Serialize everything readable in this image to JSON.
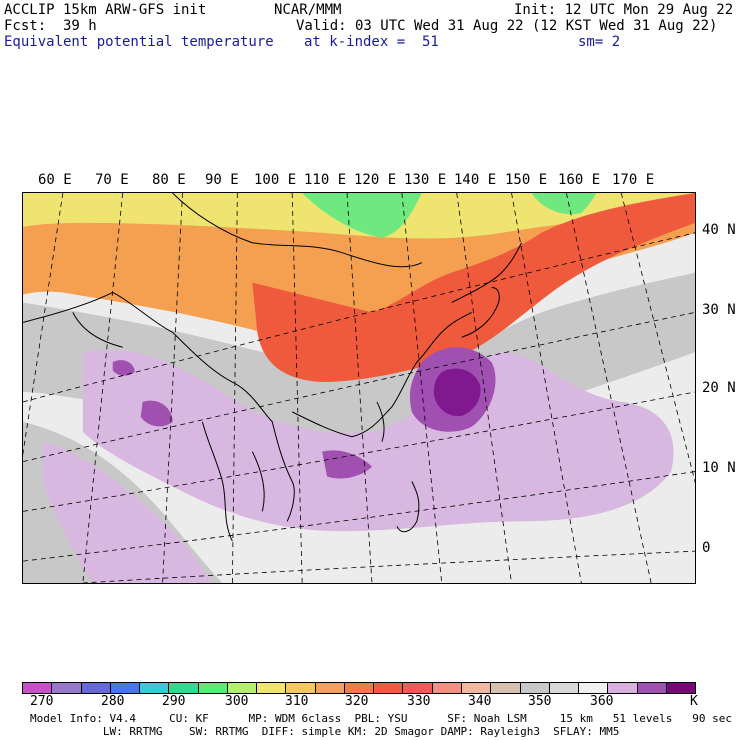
{
  "header": {
    "model": "ACCLIP 15km ARW-GFS init",
    "org": "NCAR/MMM",
    "init": "Init: 12 UTC Mon 29 Aug 22",
    "fcst": "Fcst:  39 h",
    "valid": "Valid: 03 UTC Wed 31 Aug 22 (12 KST Wed 31 Aug 22)",
    "variable": "Equivalent potential temperature",
    "level": "at k-index =  51",
    "smoothing": "sm= 2"
  },
  "map": {
    "lon_labels": [
      "60 E",
      "70 E",
      "80 E",
      "90 E",
      "100 E",
      "110 E",
      "120 E",
      "130 E",
      "140 E",
      "150 E",
      "160 E",
      "170 E"
    ],
    "lat_labels": [
      "40 N",
      "30 N",
      "20 N",
      "10 N",
      "0"
    ],
    "field_colors": {
      "ocean_background": "#ececec",
      "land_gray": "#c8c8c8",
      "orange": "#f4a050",
      "red": "#f05a3c",
      "yellow": "#f4e060",
      "green": "#70e880",
      "light_purple": "#d8b8e0",
      "mid_purple": "#a050b0",
      "dark_purple": "#801890"
    }
  },
  "colorbar": {
    "colors": [
      "#c850c8",
      "#9878c8",
      "#6868d8",
      "#4878e8",
      "#38c8d8",
      "#30d890",
      "#58ec70",
      "#b4f070",
      "#f0e470",
      "#f4c860",
      "#f4a060",
      "#f07a48",
      "#f05a40",
      "#f05a5a",
      "#f49080",
      "#f0b8a0",
      "#d8c0b0",
      "#c8c8c8",
      "#d8d8d8",
      "#f0f0f0",
      "#d8b0e0",
      "#a050b0",
      "#780878"
    ],
    "labels": [
      "270",
      "280",
      "290",
      "300",
      "310",
      "320",
      "330",
      "340",
      "350",
      "360",
      "K"
    ]
  },
  "footer": {
    "line1": "Model Info: V4.4     CU: KF      MP: WDM 6class  PBL: YSU      SF: Noah LSM     15 km   51 levels   90 sec",
    "line2": "           LW: RRTMG    SW: RRTMG  DIFF: simple KM: 2D Smagor DAMP: Rayleigh3  SFLAY: MM5"
  }
}
